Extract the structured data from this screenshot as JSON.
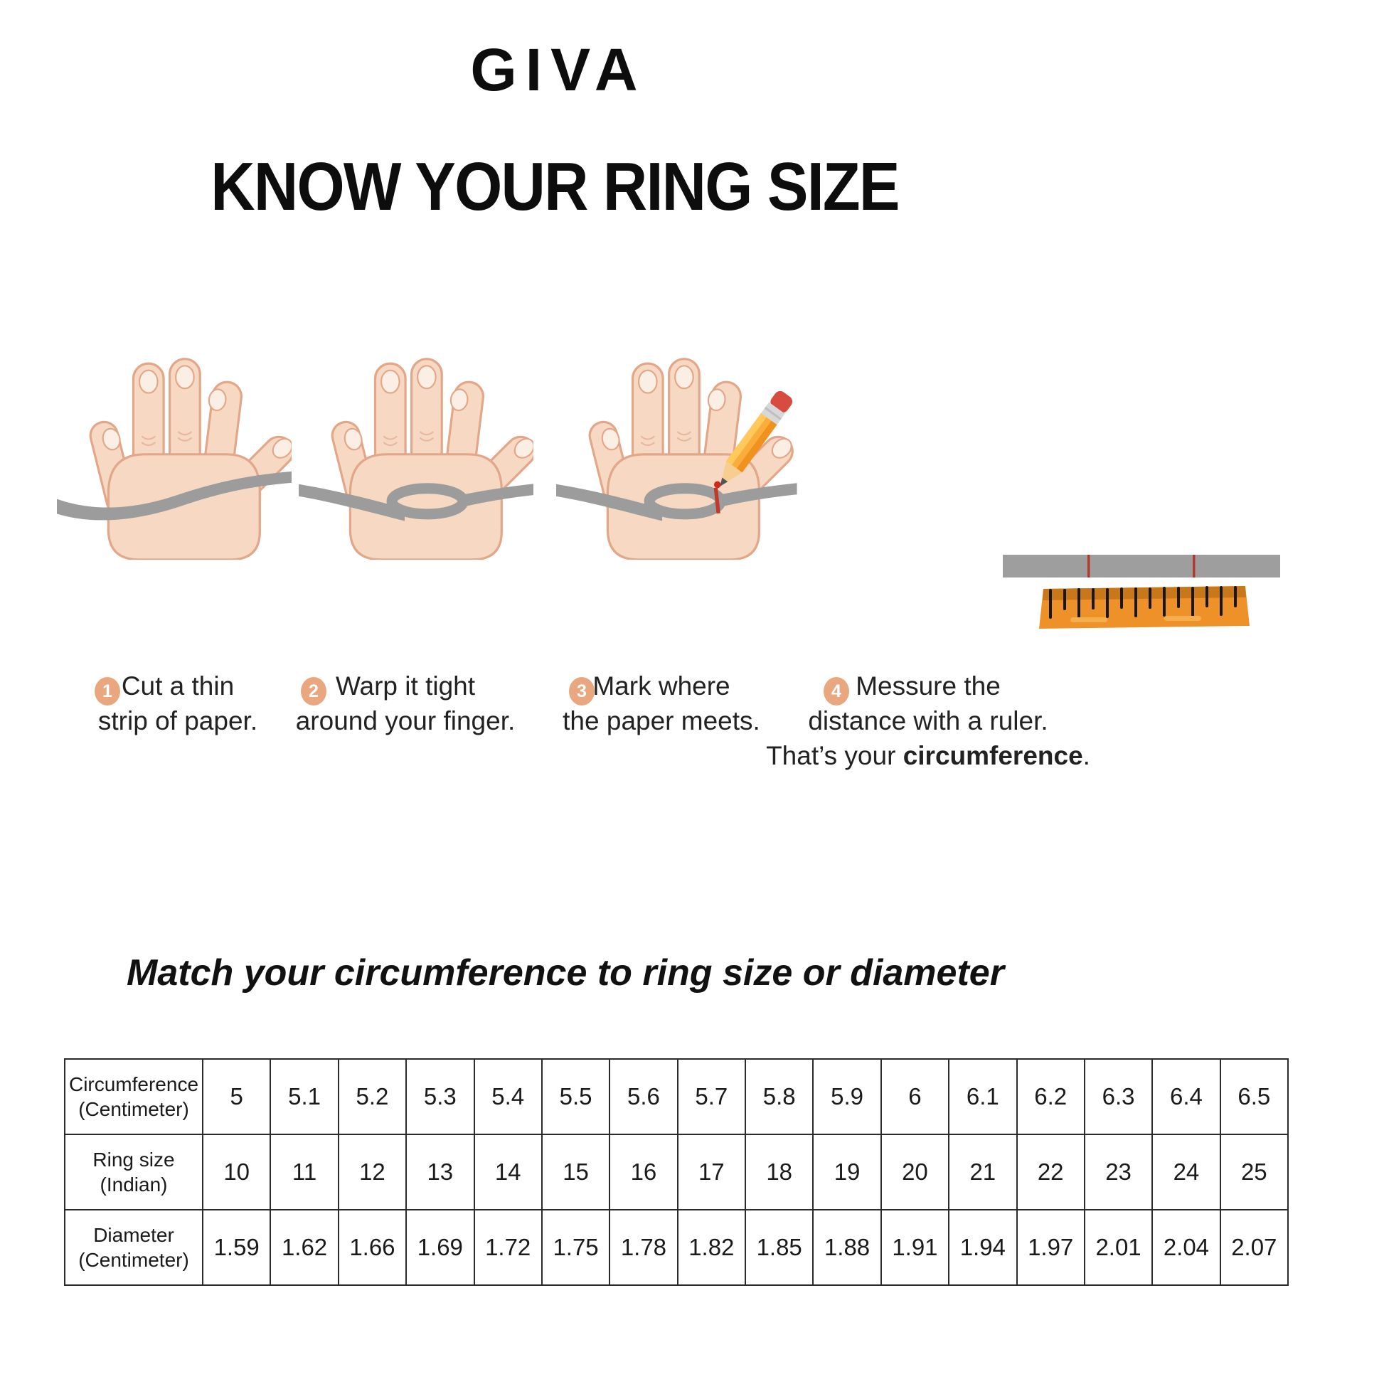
{
  "brand": {
    "logo_text": "GIVA"
  },
  "title": "KNOW YOUR RING SIZE",
  "steps": [
    {
      "number": "1",
      "lines": [
        "Cut a thin",
        "strip of paper."
      ]
    },
    {
      "number": "2",
      "lines": [
        "Warp it tight",
        "around your finger."
      ]
    },
    {
      "number": "3",
      "lines": [
        "Mark where",
        "the paper meets."
      ]
    },
    {
      "number": "4",
      "lines": [
        "Messure the",
        "distance with a ruler."
      ],
      "extra": {
        "prefix": "That’s your ",
        "bold": "circumference",
        "suffix": "."
      }
    }
  ],
  "table_title": "Match your circumference to ring size or diameter",
  "size_table": {
    "rows": [
      {
        "label_line1": "Circumference",
        "label_line2": "(Centimeter)",
        "values": [
          "5",
          "5.1",
          "5.2",
          "5.3",
          "5.4",
          "5.5",
          "5.6",
          "5.7",
          "5.8",
          "5.9",
          "6",
          "6.1",
          "6.2",
          "6.3",
          "6.4",
          "6.5"
        ]
      },
      {
        "label_line1": "Ring size",
        "label_line2": "(Indian)",
        "values": [
          "10",
          "11",
          "12",
          "13",
          "14",
          "15",
          "16",
          "17",
          "18",
          "19",
          "20",
          "21",
          "22",
          "23",
          "24",
          "25"
        ]
      },
      {
        "label_line1": "Diameter",
        "label_line2": "(Centimeter)",
        "values": [
          "1.59",
          "1.62",
          "1.66",
          "1.69",
          "1.72",
          "1.75",
          "1.78",
          "1.82",
          "1.85",
          "1.88",
          "1.91",
          "1.94",
          "1.97",
          "2.01",
          "2.04",
          "2.07"
        ]
      }
    ]
  },
  "colors": {
    "badge": "#E9A77F",
    "strip_gray": "#9C9C9C",
    "ruler_orange": "#EE9129",
    "skin": "#F7D9C3",
    "skin_outline": "#E2A688",
    "mark_red": "#C0392B",
    "text": "#1d1d1d"
  }
}
